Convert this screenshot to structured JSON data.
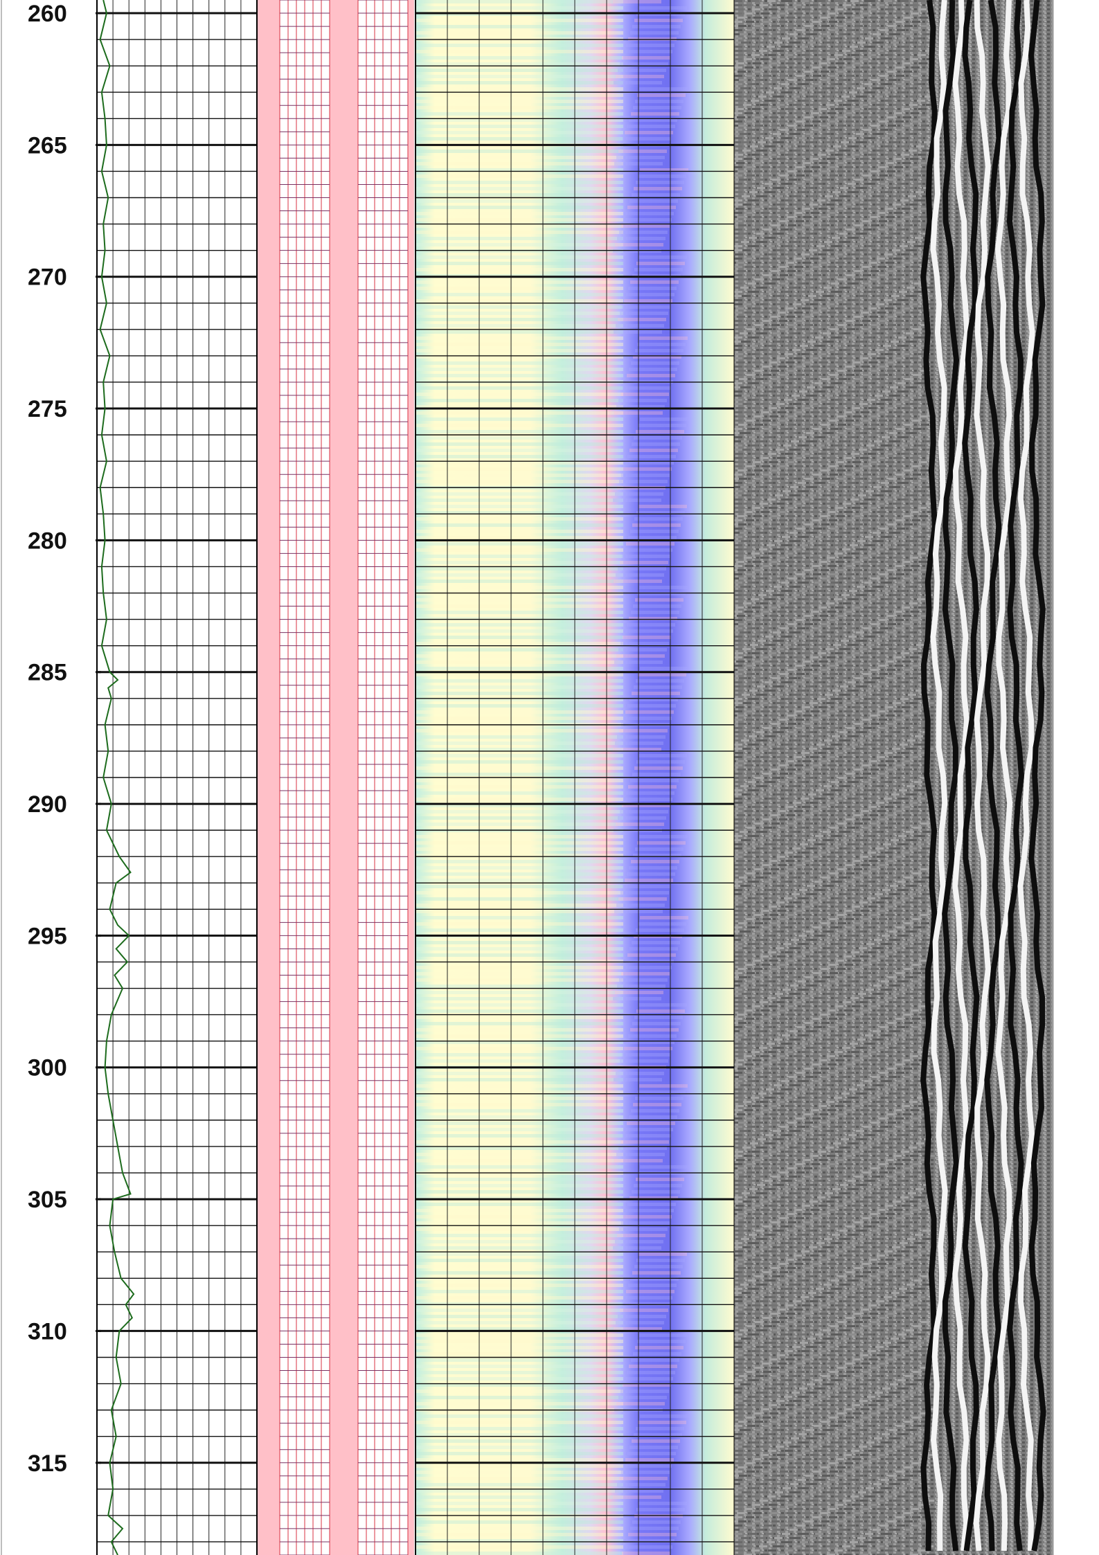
{
  "chart_data": {
    "type": "line",
    "title": "",
    "xlabel": "",
    "ylabel": "",
    "y_axis": {
      "orientation": "depth-down",
      "ylim": [
        259.5,
        318.5
      ],
      "major_tick_step": 5,
      "minor_tick_step": 1
    },
    "depth_labels": [
      "260",
      "265",
      "270",
      "275",
      "280",
      "285",
      "290",
      "295",
      "300",
      "305",
      "310",
      "315"
    ],
    "tracks": [
      {
        "name": "",
        "kind": "curve",
        "color": "#1c6b1c",
        "xlim": [
          0,
          10
        ],
        "grid": true,
        "series": [
          {
            "name": "",
            "depth": [
              259.5,
              260,
              261,
              262,
              263,
              264,
              265,
              266,
              267,
              268,
              269,
              270,
              271,
              272,
              273,
              274,
              275,
              276,
              277,
              278,
              279,
              280,
              281,
              282,
              283,
              284,
              285,
              285.3,
              285.6,
              286,
              287,
              288,
              289,
              290,
              291,
              292,
              292.6,
              293,
              294,
              294.6,
              295,
              295.5,
              296,
              296.5,
              297,
              298,
              299,
              300,
              301,
              302,
              303,
              304,
              304.8,
              305,
              306,
              307,
              308,
              308.6,
              309,
              309.5,
              310,
              311,
              312,
              313,
              314,
              315,
              316,
              317,
              317.5,
              318,
              318.5
            ],
            "values": [
              0.4,
              0.6,
              0.2,
              0.8,
              0.3,
              0.5,
              0.6,
              0.3,
              0.7,
              0.4,
              0.5,
              0.3,
              0.6,
              0.2,
              0.8,
              0.4,
              0.5,
              0.3,
              0.6,
              0.2,
              0.4,
              0.5,
              0.3,
              0.4,
              0.6,
              0.3,
              0.8,
              1.3,
              0.7,
              0.9,
              0.5,
              0.7,
              0.4,
              0.9,
              0.6,
              1.4,
              2.1,
              1.2,
              0.8,
              1.3,
              2.0,
              1.2,
              1.9,
              1.1,
              1.6,
              0.9,
              0.6,
              0.5,
              0.7,
              1.0,
              1.3,
              1.6,
              2.1,
              1.0,
              0.8,
              1.1,
              1.5,
              2.3,
              1.8,
              2.2,
              1.4,
              1.2,
              1.5,
              0.9,
              1.2,
              0.8,
              1.0,
              0.7,
              1.6,
              0.9,
              1.3
            ]
          }
        ]
      },
      {
        "name": "",
        "kind": "empty-grid",
        "colors": [
          "#ffc0c8",
          "#d84040"
        ],
        "grid": true
      },
      {
        "name": "",
        "kind": "color-image",
        "grid": true,
        "colors": [
          "#fffdd0",
          "#c8f0d8",
          "#ffb8c8",
          "#b8b8ff",
          "#7070ff"
        ]
      },
      {
        "name": "",
        "kind": "grayscale-waveform",
        "grid": false,
        "colors": [
          "#7a7a7a",
          "#101010",
          "#f4f4f4"
        ]
      }
    ]
  }
}
